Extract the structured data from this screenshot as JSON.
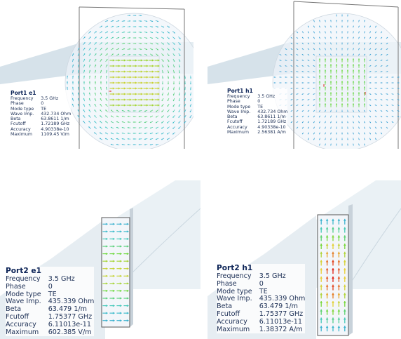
{
  "panels": [
    {
      "id": "port1-e1",
      "title": "Port1 e1",
      "kind": "circular",
      "rows": [
        {
          "label": "Frequency",
          "value": "3.5 GHz"
        },
        {
          "label": "Phase",
          "value": "0"
        },
        {
          "label": "Mode type",
          "value": "TE"
        },
        {
          "label": "Wave Imp.",
          "value": "432.734 Ohm"
        },
        {
          "label": "Beta",
          "value": "63.8611 1/m"
        },
        {
          "label": "Fcutoff",
          "value": "1.72189 GHz"
        },
        {
          "label": "Accuracy",
          "value": "4.90338e-10"
        },
        {
          "label": "Maximum",
          "value": "1109.45 V/m"
        }
      ]
    },
    {
      "id": "port1-h1",
      "title": "Port1 h1",
      "kind": "circular",
      "rows": [
        {
          "label": "Frequency",
          "value": "3.5 GHz"
        },
        {
          "label": "Phase",
          "value": "0"
        },
        {
          "label": "Mode type",
          "value": "TE"
        },
        {
          "label": "Wave Imp.",
          "value": "432.734 Ohm"
        },
        {
          "label": "Beta",
          "value": "63.8611 1/m"
        },
        {
          "label": "Fcutoff",
          "value": "1.72189 GHz"
        },
        {
          "label": "Accuracy",
          "value": "4.90338e-10"
        },
        {
          "label": "Maximum",
          "value": "2.56381 A/m"
        }
      ]
    },
    {
      "id": "port2-e1",
      "title": "Port2 e1",
      "kind": "rect",
      "rows": [
        {
          "label": "Frequency",
          "value": "3.5 GHz"
        },
        {
          "label": "Phase",
          "value": "0"
        },
        {
          "label": "Mode type",
          "value": "TE"
        },
        {
          "label": "Wave Imp.",
          "value": "435.339 Ohm"
        },
        {
          "label": "Beta",
          "value": "63.479 1/m"
        },
        {
          "label": "Fcutoff",
          "value": "1.75377 GHz"
        },
        {
          "label": "Accuracy",
          "value": "6.11013e-11"
        },
        {
          "label": "Maximum",
          "value": "602.385 V/m"
        }
      ]
    },
    {
      "id": "port2-h1",
      "title": "Port2 h1",
      "kind": "rect",
      "rows": [
        {
          "label": "Frequency",
          "value": "3.5 GHz"
        },
        {
          "label": "Phase",
          "value": "0"
        },
        {
          "label": "Mode type",
          "value": "TE"
        },
        {
          "label": "Wave Imp.",
          "value": "435.339 Ohm"
        },
        {
          "label": "Beta",
          "value": "63.479 1/m"
        },
        {
          "label": "Fcutoff",
          "value": "1.75377 GHz"
        },
        {
          "label": "Accuracy",
          "value": "6.11013e-11"
        },
        {
          "label": "Maximum",
          "value": "1.38372 A/m"
        }
      ]
    }
  ],
  "colors": {
    "background": "#ffffff",
    "body": "#dde8ee",
    "port_face": "#eef3f8",
    "low_field": "#3a8ed8",
    "high_field": "#e01810",
    "label_text": "#1c2f55"
  }
}
